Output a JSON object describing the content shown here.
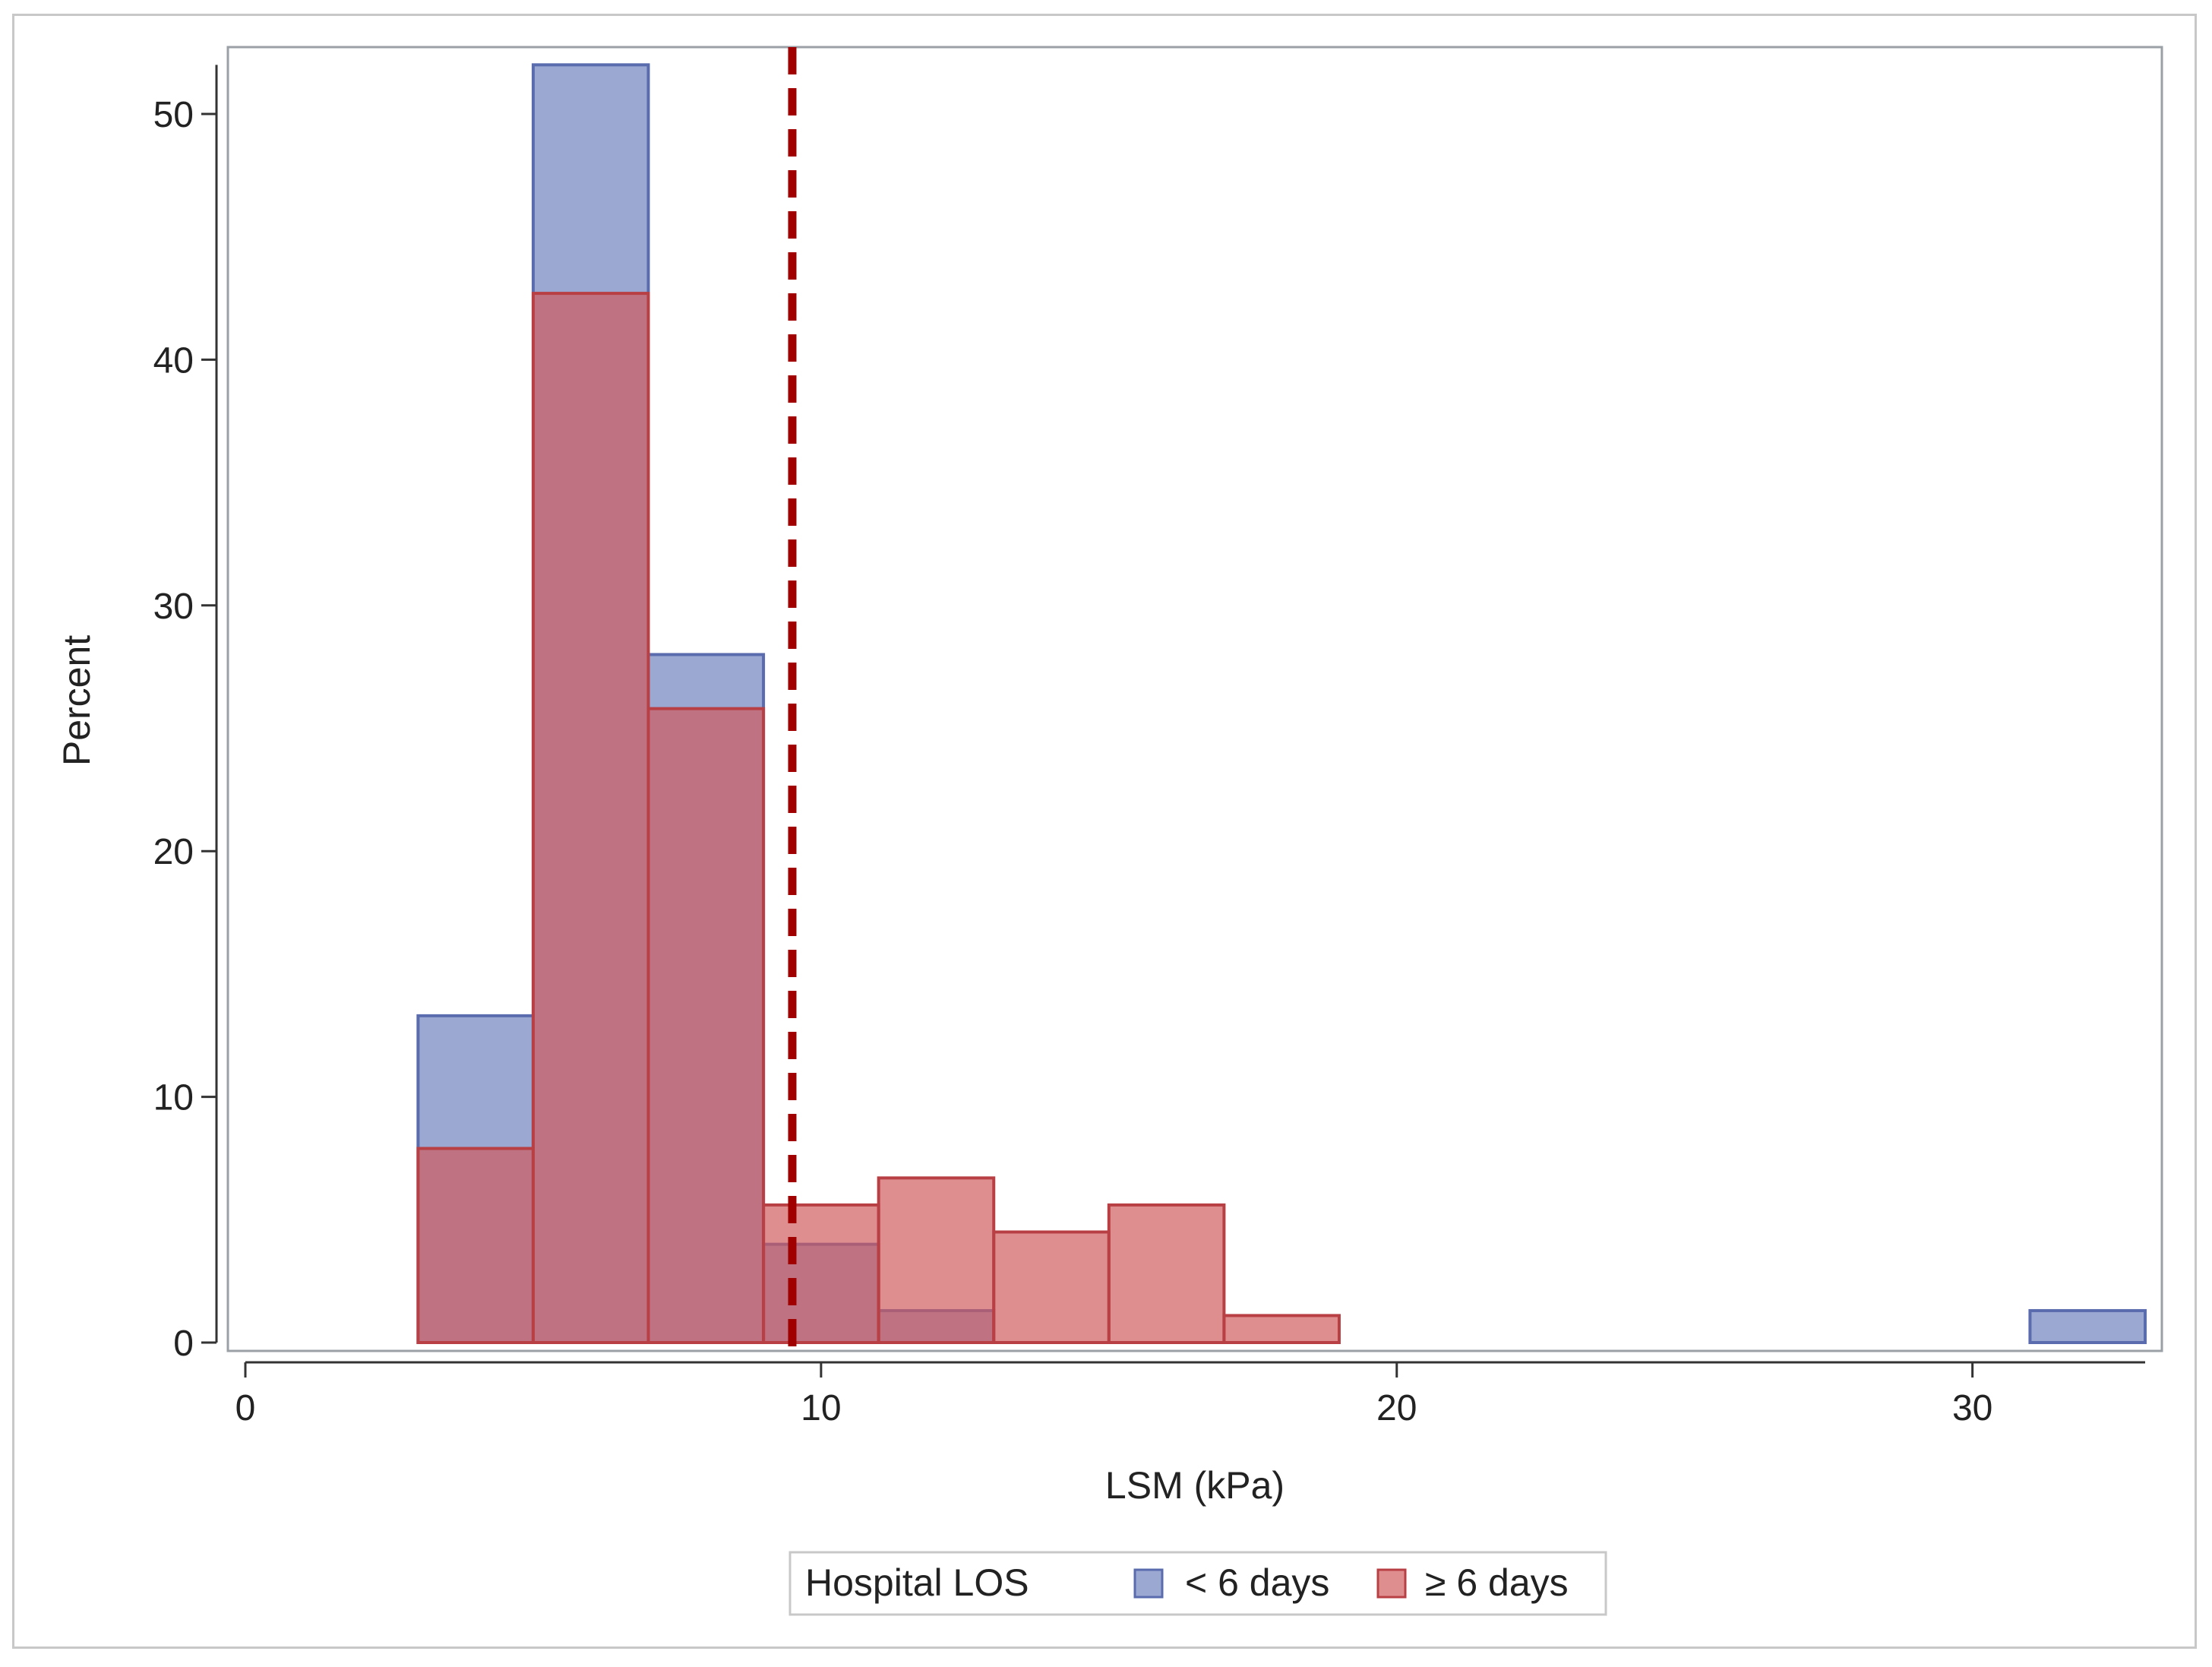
{
  "chart_data": {
    "type": "histogram",
    "xlabel": "LSM (kPa)",
    "ylabel": "Percent",
    "xlim": [
      0,
      33
    ],
    "ylim": [
      0,
      52
    ],
    "xticks": [
      0,
      10,
      20,
      30
    ],
    "yticks": [
      0,
      10,
      20,
      30,
      40,
      50
    ],
    "bin_width": 2,
    "reference_line": {
      "x": 9.5,
      "color": "#a00000",
      "style": "dashed"
    },
    "legend": {
      "title": "Hospital LOS",
      "position": "bottom-center"
    },
    "series": [
      {
        "name": "< 6 days",
        "color": "#6a7fbd",
        "bins": [
          {
            "x0": 3,
            "x1": 5,
            "value": 13.3
          },
          {
            "x0": 5,
            "x1": 7,
            "value": 52
          },
          {
            "x0": 7,
            "x1": 9,
            "value": 28
          },
          {
            "x0": 9,
            "x1": 11,
            "value": 4
          },
          {
            "x0": 11,
            "x1": 13,
            "value": 1.3
          },
          {
            "x0": 13,
            "x1": 15,
            "value": 0
          },
          {
            "x0": 15,
            "x1": 17,
            "value": 0
          },
          {
            "x0": 17,
            "x1": 19,
            "value": 0
          },
          {
            "x0": 19,
            "x1": 21,
            "value": 0
          },
          {
            "x0": 21,
            "x1": 23,
            "value": 0
          },
          {
            "x0": 23,
            "x1": 25,
            "value": 0
          },
          {
            "x0": 25,
            "x1": 27,
            "value": 0
          },
          {
            "x0": 27,
            "x1": 29,
            "value": 0
          },
          {
            "x0": 29,
            "x1": 31,
            "value": 0
          },
          {
            "x0": 31,
            "x1": 33,
            "value": 1.3
          }
        ]
      },
      {
        "name": "≥ 6 days",
        "color": "#d0585b",
        "bins": [
          {
            "x0": 3,
            "x1": 5,
            "value": 7.9
          },
          {
            "x0": 5,
            "x1": 7,
            "value": 42.7
          },
          {
            "x0": 7,
            "x1": 9,
            "value": 25.8
          },
          {
            "x0": 9,
            "x1": 11,
            "value": 5.6
          },
          {
            "x0": 11,
            "x1": 13,
            "value": 6.7
          },
          {
            "x0": 13,
            "x1": 15,
            "value": 4.5
          },
          {
            "x0": 15,
            "x1": 17,
            "value": 5.6
          },
          {
            "x0": 17,
            "x1": 19,
            "value": 1.1
          },
          {
            "x0": 19,
            "x1": 21,
            "value": 0
          },
          {
            "x0": 21,
            "x1": 23,
            "value": 0
          },
          {
            "x0": 23,
            "x1": 25,
            "value": 0
          },
          {
            "x0": 25,
            "x1": 27,
            "value": 0
          },
          {
            "x0": 27,
            "x1": 29,
            "value": 0
          },
          {
            "x0": 29,
            "x1": 31,
            "value": 0
          },
          {
            "x0": 31,
            "x1": 33,
            "value": 0
          }
        ]
      }
    ]
  }
}
